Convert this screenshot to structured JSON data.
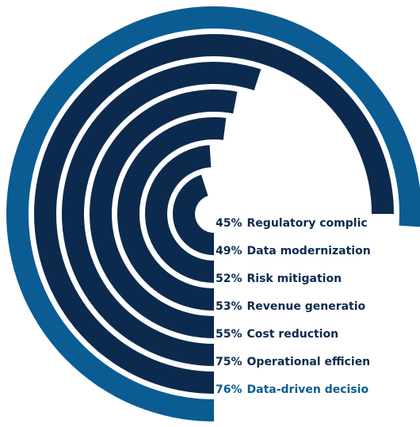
{
  "chart_data": {
    "type": "radial-bar",
    "categories": [
      "Regulatory complic",
      "Data modernization",
      "Risk mitigation",
      "Revenue generatio",
      "Cost reduction",
      "Operational efficien",
      "Data-driven decisio"
    ],
    "values": [
      45,
      49,
      52,
      53,
      55,
      75,
      76
    ],
    "value_labels": [
      "45%",
      "49%",
      "52%",
      "53%",
      "55%",
      "75%",
      "76%"
    ],
    "colors": [
      "#0c2a4e",
      "#0c2a4e",
      "#0c2a4e",
      "#0c2a4e",
      "#0c2a4e",
      "#0c2a4e",
      "#0a5c93"
    ],
    "xlim": [
      0,
      100
    ]
  }
}
